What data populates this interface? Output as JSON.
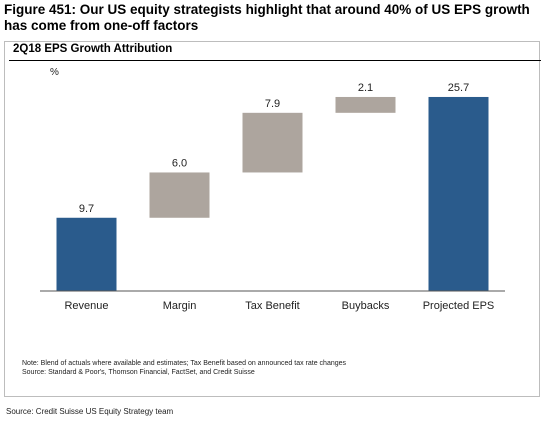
{
  "figure_title": "Figure 451: Our US equity strategists highlight that around 40% of US EPS growth has come from one-off factors",
  "panel_title": "2Q18 EPS Growth Attribution",
  "note_line1": "Note: Blend of actuals where available and estimates; Tax Benefit based on announced tax rate changes",
  "note_line2": "Source: Standard & Poor's, Thomson Financial, FactSet, and Credit Suisse",
  "source": "Source: Credit Suisse US Equity Strategy team",
  "colors": {
    "total": "#2a5b8c",
    "step": "#ada59e"
  },
  "chart_data": {
    "type": "bar",
    "subtype": "waterfall",
    "ylabel": "%",
    "categories": [
      "Revenue",
      "Margin",
      "Tax Benefit",
      "Buybacks",
      "Projected EPS"
    ],
    "values": [
      9.7,
      6.0,
      7.9,
      2.1,
      25.7
    ],
    "bar_kind": [
      "total",
      "step",
      "step",
      "step",
      "total"
    ],
    "data_labels": [
      "9.7",
      "6.0",
      "7.9",
      "2.1",
      "25.7"
    ],
    "ylim": [
      0,
      30
    ],
    "grid": false
  }
}
